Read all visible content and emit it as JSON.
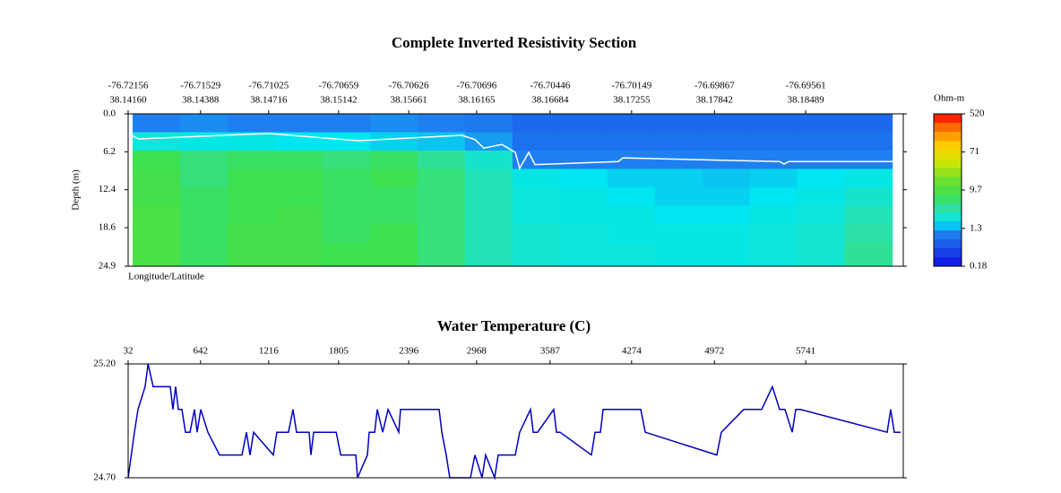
{
  "chart_data": [
    {
      "type": "heatmap",
      "title": "Complete Inverted Resistivity Section",
      "xlabel": "Longitude/Latitude",
      "ylabel": "Depth (m)",
      "xlim": [
        32,
        6563
      ],
      "xticks": [
        {
          "value": 32,
          "label": "-76.72156",
          "label2": "38.14160"
        },
        {
          "value": 642,
          "label": "-76.71529",
          "label2": "38.14388"
        },
        {
          "value": 1216,
          "label": "-76.71025",
          "label2": "38.14716"
        },
        {
          "value": 1805,
          "label": "-76.70659",
          "label2": "38.15142"
        },
        {
          "value": 2396,
          "label": "-76.70626",
          "label2": "38.15661"
        },
        {
          "value": 2968,
          "label": "-76.70696",
          "label2": "38.16165"
        },
        {
          "value": 3587,
          "label": "-76.70446",
          "label2": "38.16684"
        },
        {
          "value": 4274,
          "label": "-76.70149",
          "label2": "38.17255"
        },
        {
          "value": 4972,
          "label": "-76.69867",
          "label2": "38.17842"
        },
        {
          "value": 5741,
          "label": "-76.69561",
          "label2": "38.18489"
        }
      ],
      "ylim": [
        0,
        24.9
      ],
      "yticks": [
        {
          "value": 0,
          "label": "0.0"
        },
        6.2,
        12.4,
        18.6,
        24.9
      ],
      "x_edges": [
        70,
        470,
        870,
        1270,
        1670,
        2070,
        2470,
        2870,
        3270,
        3670,
        4070,
        4470,
        4870,
        5270,
        5670,
        6070,
        6470
      ],
      "depth_edges": [
        0,
        3,
        6,
        9,
        12,
        15,
        18,
        21,
        24.9
      ],
      "z": [
        [
          1.0,
          1.1,
          1.0,
          1.0,
          1.0,
          1.1,
          1.0,
          0.9,
          0.7,
          0.7,
          0.7,
          0.7,
          0.7,
          0.7,
          0.7,
          0.7
        ],
        [
          2.2,
          2.0,
          2.0,
          1.8,
          1.8,
          1.6,
          1.5,
          1.2,
          0.8,
          0.8,
          0.8,
          0.8,
          0.8,
          0.8,
          0.8,
          0.8
        ],
        [
          7,
          5,
          6,
          6,
          5,
          6,
          4,
          2.5,
          1.0,
          1.0,
          1.0,
          1.0,
          1.0,
          1.0,
          1.0,
          1.0
        ],
        [
          8,
          5,
          7,
          7,
          6,
          7,
          5,
          3,
          2.0,
          1.8,
          1.6,
          1.6,
          1.5,
          1.6,
          1.8,
          2.0
        ],
        [
          8,
          6,
          7,
          7,
          6,
          6,
          5,
          3,
          2.2,
          2.0,
          1.8,
          1.6,
          1.6,
          1.8,
          2.0,
          2.5
        ],
        [
          9,
          6,
          7,
          8,
          6,
          6,
          5,
          3,
          2.2,
          2.0,
          2.0,
          1.8,
          1.8,
          2.0,
          2.2,
          3
        ],
        [
          9,
          6,
          8,
          8,
          6,
          7,
          5,
          3,
          2.4,
          2.2,
          2.0,
          2.0,
          2.0,
          2.2,
          2.4,
          3.5
        ],
        [
          9,
          6,
          8,
          8,
          7,
          7,
          5,
          3,
          2.4,
          2.2,
          2.2,
          2.0,
          2.0,
          2.2,
          2.4,
          4
        ]
      ],
      "bottom_line": {
        "color": "#ffffff",
        "x": [
          47,
          123,
          1217,
          1972,
          2841,
          2954,
          3029,
          3180,
          3294,
          3331,
          3407,
          3460,
          4162,
          4200,
          5521,
          5559,
          5597,
          6503
        ],
        "values": [
          3.4,
          4.1,
          3.2,
          4.4,
          3.5,
          4.2,
          5.6,
          5.0,
          6.3,
          8.9,
          6.3,
          8.3,
          7.8,
          7.2,
          7.8,
          8.2,
          7.8,
          7.8
        ]
      },
      "colorbar": {
        "title": "Ohm-m",
        "scale": "log",
        "lim": [
          0.18,
          520
        ],
        "ticks": [
          0.18,
          1.3,
          9.7,
          71,
          520
        ]
      }
    },
    {
      "type": "line",
      "title": "Water Temperature (C)",
      "color": "#0000c0",
      "xlim": [
        32,
        6563
      ],
      "xticks": [
        32,
        642,
        1216,
        1805,
        2396,
        2968,
        3587,
        4274,
        4972,
        5741
      ],
      "ylim": [
        24.7,
        25.2
      ],
      "yticks": [
        {
          "value": 25.2,
          "label": "25.20"
        },
        {
          "value": 24.7,
          "label": "24.70"
        }
      ],
      "x": [
        32,
        85,
        115,
        175,
        200,
        243,
        387,
        409,
        432,
        455,
        485,
        515,
        553,
        591,
        613,
        644,
        704,
        802,
        991,
        1029,
        1059,
        1089,
        1255,
        1285,
        1383,
        1421,
        1451,
        1557,
        1572,
        1595,
        1785,
        1823,
        1950,
        1965,
        2048,
        2063,
        2109,
        2131,
        2177,
        2222,
        2312,
        2327,
        2652,
        2675,
        2712,
        2742,
        2916,
        2954,
        3014,
        3044,
        3120,
        3150,
        3294,
        3331,
        3422,
        3445,
        3482,
        3618,
        3641,
        3671,
        3935,
        3966,
        4011,
        4034,
        4072,
        4351,
        4389,
        4992,
        5030,
        5219,
        5370,
        5460,
        5521,
        5566,
        5627,
        5657,
        5695,
        6427,
        6457,
        6487,
        6540
      ],
      "values": [
        24.7,
        24.9,
        25.0,
        25.1,
        25.2,
        25.1,
        25.1,
        25.0,
        25.1,
        25.0,
        25.0,
        24.9,
        24.9,
        25.0,
        24.9,
        25.0,
        24.9,
        24.8,
        24.8,
        24.9,
        24.8,
        24.9,
        24.8,
        24.9,
        24.9,
        25.0,
        24.9,
        24.9,
        24.8,
        24.9,
        24.9,
        24.8,
        24.8,
        24.7,
        24.8,
        24.9,
        24.9,
        25.0,
        24.9,
        25.0,
        24.9,
        25.0,
        25.0,
        24.9,
        24.8,
        24.7,
        24.7,
        24.8,
        24.7,
        24.8,
        24.7,
        24.8,
        24.8,
        24.9,
        25.0,
        24.9,
        24.9,
        25.0,
        24.9,
        24.9,
        24.8,
        24.9,
        24.9,
        25.0,
        25.0,
        25.0,
        24.9,
        24.8,
        24.9,
        25.0,
        25.0,
        25.1,
        25.0,
        25.0,
        24.9,
        25.0,
        25.0,
        24.9,
        25.0,
        24.9,
        24.9
      ]
    }
  ]
}
